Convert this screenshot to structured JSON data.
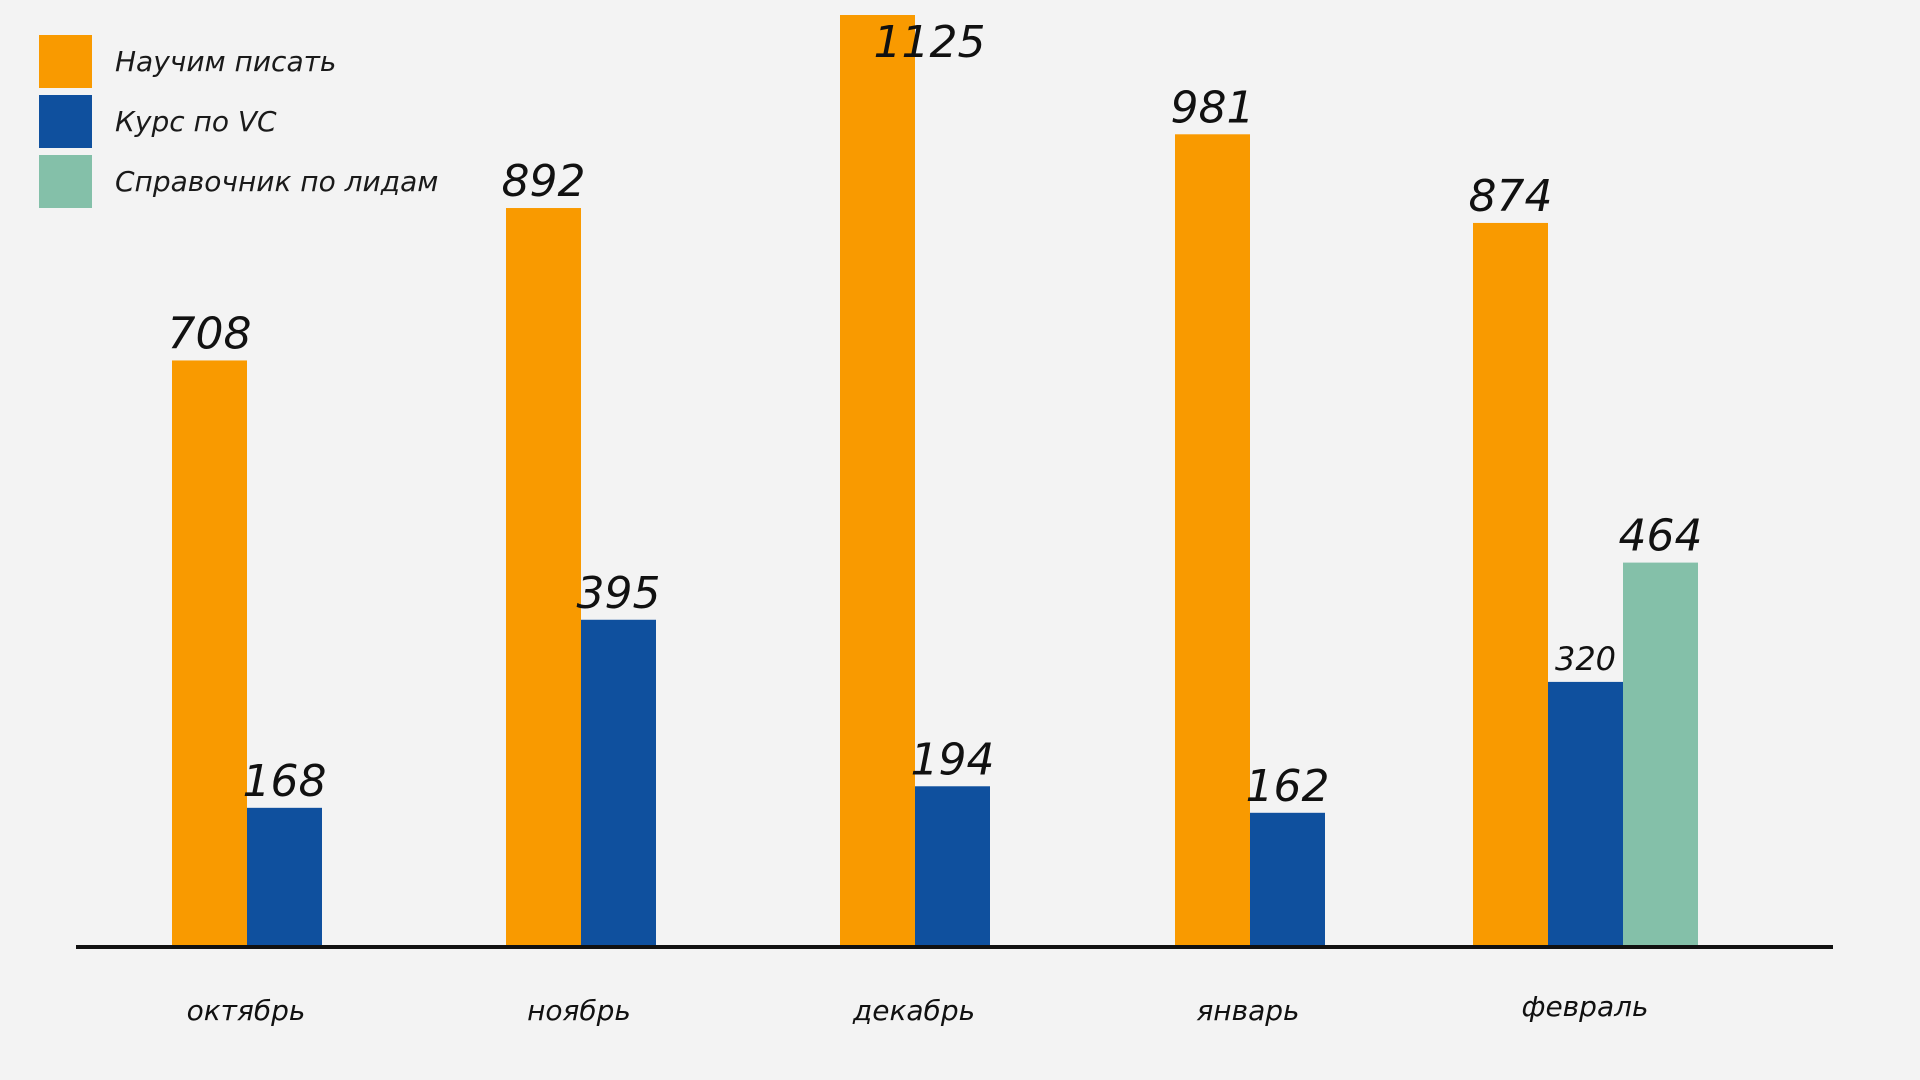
{
  "chart_data": {
    "type": "bar",
    "categories": [
      "октябрь",
      "ноябрь",
      "декабрь",
      "январь",
      "февраль"
    ],
    "series": [
      {
        "name": "Научим писать",
        "color": "#f99a00",
        "values": [
          708,
          892,
          1125,
          981,
          874
        ]
      },
      {
        "name": "Курс по VC",
        "color": "#0f509e",
        "values": [
          168,
          395,
          194,
          162,
          320
        ]
      },
      {
        "name": "Справочник по лидам",
        "color": "#84c0a9",
        "values": [
          null,
          null,
          null,
          null,
          464
        ]
      }
    ],
    "title": "",
    "xlabel": "",
    "ylabel": "",
    "ylim": [
      0,
      1125
    ],
    "grid": false,
    "legend_position": "top-left"
  }
}
